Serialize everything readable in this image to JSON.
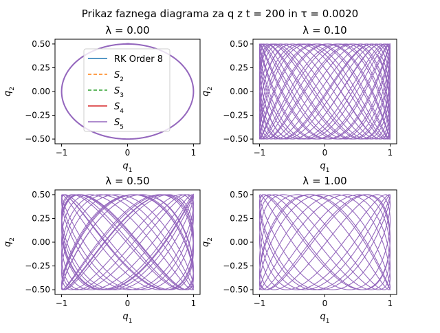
{
  "figure": {
    "suptitle": "Prikaz faznega diagrama za q z t = 200 in τ = 0.0020"
  },
  "chart_data": [
    {
      "type": "line",
      "title": "λ = 0.00",
      "xlabel": "q1",
      "ylabel": "q2",
      "xlim": [
        -1.1,
        1.1
      ],
      "ylim": [
        -0.55,
        0.55
      ],
      "xticks": [
        "−1",
        "0",
        "1"
      ],
      "yticks": [
        "−0.50",
        "−0.25",
        "0.00",
        "0.25",
        "0.50"
      ],
      "lambda": 0.0,
      "legend_position": "upper-center",
      "series": [
        {
          "name": "RK Order 8",
          "color": "#1f77b4",
          "style": "solid"
        },
        {
          "name": "S2",
          "color": "#ff7f0e",
          "style": "dashed"
        },
        {
          "name": "S3",
          "color": "#2ca02c",
          "style": "dashed"
        },
        {
          "name": "S4",
          "color": "#d62728",
          "style": "solid"
        },
        {
          "name": "S5",
          "color": "#9467bd",
          "style": "solid"
        }
      ]
    },
    {
      "type": "line",
      "title": "λ = 0.10",
      "xlabel": "q1",
      "ylabel": "q2",
      "xlim": [
        -1.1,
        1.1
      ],
      "ylim": [
        -0.55,
        0.55
      ],
      "xticks": [
        "−1",
        "0",
        "1"
      ],
      "yticks": [
        "−0.50",
        "−0.25",
        "0.00",
        "0.25",
        "0.50"
      ],
      "lambda": 0.1
    },
    {
      "type": "line",
      "title": "λ = 0.50",
      "xlabel": "q1",
      "ylabel": "q2",
      "xlim": [
        -1.1,
        1.1
      ],
      "ylim": [
        -0.55,
        0.55
      ],
      "xticks": [
        "−1",
        "0",
        "1"
      ],
      "yticks": [
        "−0.50",
        "−0.25",
        "0.00",
        "0.25",
        "0.50"
      ],
      "lambda": 0.5
    },
    {
      "type": "line",
      "title": "λ = 1.00",
      "xlabel": "q1",
      "ylabel": "q2",
      "xlim": [
        -1.1,
        1.1
      ],
      "ylim": [
        -0.55,
        0.55
      ],
      "xticks": [
        "−1",
        "0",
        "1"
      ],
      "yticks": [
        "−0.50",
        "−0.25",
        "0.00",
        "0.25",
        "0.50"
      ],
      "lambda": 1.0
    }
  ],
  "colors": {
    "trajectory": "#9467bd",
    "axes": "#000000",
    "background": "#ffffff"
  }
}
